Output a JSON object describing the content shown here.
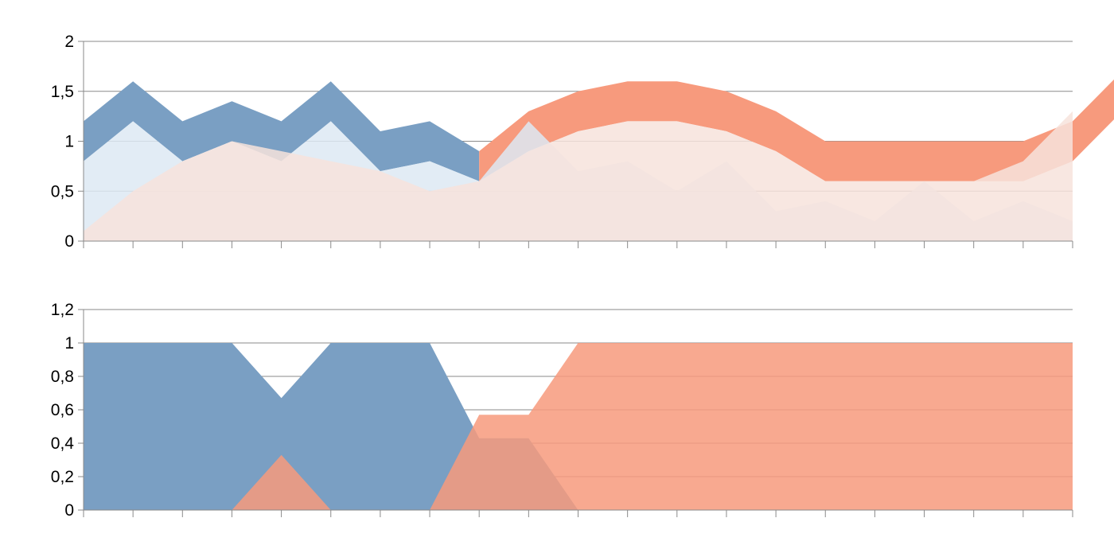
{
  "chart_data": [
    {
      "type": "area",
      "xlabel": "",
      "ylabel": "",
      "ylim": [
        0,
        2
      ],
      "yticks": [
        "0",
        "0,5",
        "1",
        "1,5",
        "2"
      ],
      "ytick_values": [
        0,
        0.5,
        1,
        1.5,
        2
      ],
      "x_count": 21,
      "grid": true,
      "legend": "none",
      "series": [
        {
          "role": "band",
          "color": "#7a9fc3",
          "upper": [
            1.2,
            1.6,
            1.2,
            1.4,
            1.2,
            1.6,
            1.1,
            1.2,
            0.9
          ],
          "lower": [
            0.8,
            1.2,
            0.8,
            1.0,
            0.8,
            1.2,
            0.7,
            0.8,
            0.6
          ]
        },
        {
          "role": "band",
          "color": "#f79a7d",
          "offset": 8,
          "upper": [
            0.9,
            1.3,
            1.5,
            1.6,
            1.6,
            1.5,
            1.3,
            1.0,
            1.0,
            1.0,
            1.0,
            1.0,
            1.2,
            1.7
          ],
          "lower": [
            0.6,
            0.9,
            1.1,
            1.2,
            1.2,
            1.1,
            0.9,
            0.6,
            0.6,
            0.6,
            0.6,
            0.6,
            0.8,
            1.3
          ]
        },
        {
          "role": "area",
          "color": "#dde9f3",
          "values": [
            0.8,
            1.2,
            0.8,
            1.0,
            0.8,
            1.2,
            0.7,
            0.8,
            0.6,
            1.2,
            0.7,
            0.8,
            0.5,
            0.8,
            0.3,
            0.4,
            0.2,
            0.6,
            0.2,
            0.4,
            0.2
          ]
        },
        {
          "role": "area",
          "color": "#f7e3dc",
          "values": [
            0.1,
            0.5,
            0.8,
            1.0,
            0.9,
            0.8,
            0.7,
            0.5,
            0.6,
            0.9,
            1.1,
            1.2,
            1.2,
            1.1,
            0.9,
            0.6,
            0.6,
            0.6,
            0.6,
            0.8,
            1.3
          ]
        }
      ]
    },
    {
      "type": "area",
      "xlabel": "",
      "ylabel": "",
      "ylim": [
        0,
        1.2
      ],
      "yticks": [
        "0",
        "0,2",
        "0,4",
        "0,6",
        "0,8",
        "1",
        "1,2"
      ],
      "ytick_values": [
        0,
        0.2,
        0.4,
        0.6,
        0.8,
        1,
        1.2
      ],
      "x_count": 21,
      "grid": true,
      "legend": "none",
      "series": [
        {
          "role": "area",
          "color": "#7a9fc3",
          "values": [
            1,
            1,
            1,
            1,
            0.67,
            1,
            1,
            1,
            0.43,
            0.43,
            0,
            0,
            0,
            0,
            0,
            0,
            0,
            0,
            0,
            0,
            0
          ]
        },
        {
          "role": "area",
          "color": "#f79a7d",
          "values": [
            0,
            0,
            0,
            0,
            0.33,
            0,
            0,
            0,
            0.57,
            0.57,
            1,
            1,
            1,
            1,
            1,
            1,
            1,
            1,
            1,
            1,
            1
          ]
        }
      ]
    }
  ]
}
